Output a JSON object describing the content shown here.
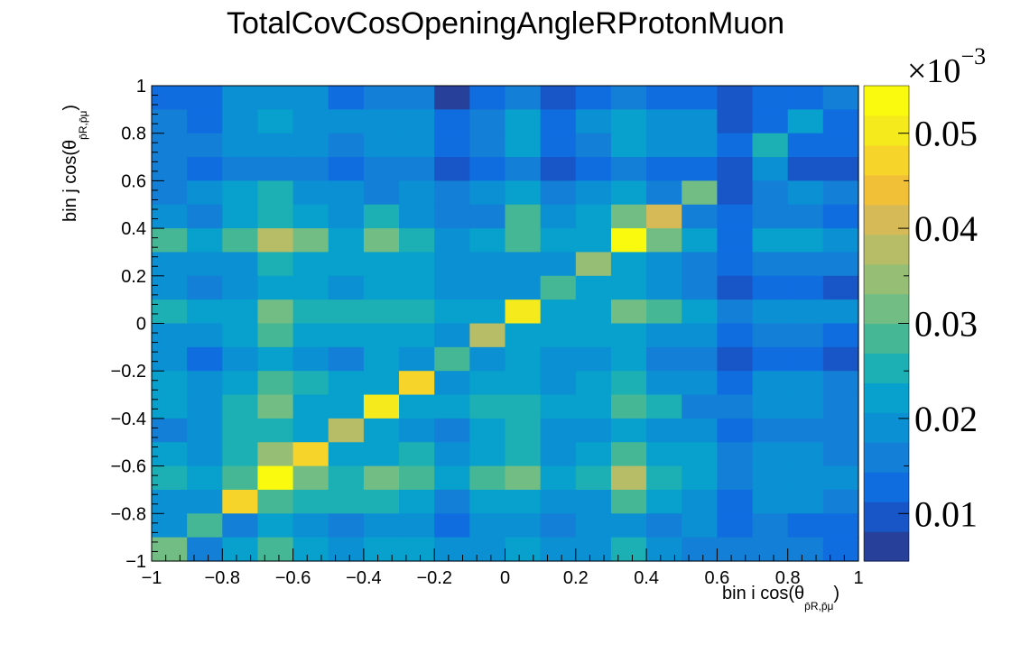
{
  "chart_data": {
    "type": "heatmap",
    "title": "TotalCovCosOpeningAngleRProtonMuon",
    "xlabel": "bin i cos(θ",
    "xlabel_sub": "p̄R,p̄μ",
    "ylabel": "bin j cos(θ",
    "ylabel_sub": "p̄R,p̄μ",
    "xlim": [
      -1,
      1
    ],
    "ylim": [
      -1,
      1
    ],
    "x_ticks": [
      "−1",
      "−0.8",
      "−0.6",
      "−0.4",
      "−0.2",
      "0",
      "0.2",
      "0.4",
      "0.6",
      "0.8",
      "1"
    ],
    "y_ticks": [
      "−1",
      "−0.8",
      "−0.6",
      "−0.4",
      "−0.2",
      "0",
      "0.2",
      "0.4",
      "0.6",
      "0.8",
      "1"
    ],
    "colorbar": {
      "range": [
        0.005,
        0.055
      ],
      "exponent_base": "×10",
      "exponent_power": "−3",
      "tick_values": [
        0.01,
        0.02,
        0.03,
        0.04,
        0.05
      ],
      "tick_labels": [
        "0.01",
        "0.02",
        "0.03",
        "0.04",
        "0.05"
      ],
      "colors": [
        "#27409a",
        "#1856c8",
        "#0f6de0",
        "#137fd6",
        "#0b90d4",
        "#08a0cc",
        "#1cb0b4",
        "#46b794",
        "#72bd84",
        "#96be74",
        "#b7bc67",
        "#d7ba58",
        "#f2c036",
        "#f6d42a",
        "#f5ea1c",
        "#fafa0e"
      ]
    },
    "grid": false,
    "nbins": 20,
    "z_rows_from_top": [
      [
        0.014,
        0.014,
        0.0175,
        0.0175,
        0.0175,
        0.013,
        0.0165,
        0.0165,
        0.008,
        0.013,
        0.0155,
        0.0085,
        0.013,
        0.0165,
        0.014,
        0.014,
        0.009,
        0.014,
        0.014,
        0.0165
      ],
      [
        0.015,
        0.012,
        0.019,
        0.021,
        0.019,
        0.018,
        0.018,
        0.018,
        0.013,
        0.015,
        0.021,
        0.013,
        0.0175,
        0.021,
        0.018,
        0.0195,
        0.0085,
        0.014,
        0.023,
        0.014
      ],
      [
        0.015,
        0.017,
        0.02,
        0.02,
        0.02,
        0.017,
        0.019,
        0.019,
        0.012,
        0.016,
        0.021,
        0.012,
        0.017,
        0.021,
        0.0175,
        0.0175,
        0.013,
        0.024,
        0.014,
        0.014
      ],
      [
        0.015,
        0.0125,
        0.015,
        0.016,
        0.015,
        0.0135,
        0.0165,
        0.015,
        0.009,
        0.0125,
        0.0155,
        0.0085,
        0.0125,
        0.016,
        0.013,
        0.014,
        0.0085,
        0.019,
        0.01,
        0.01
      ],
      [
        0.016,
        0.018,
        0.022,
        0.024,
        0.02,
        0.02,
        0.0165,
        0.019,
        0.015,
        0.019,
        0.021,
        0.0165,
        0.0185,
        0.022,
        0.0165,
        0.032,
        0.009,
        0.017,
        0.019,
        0.0145
      ],
      [
        0.019,
        0.016,
        0.022,
        0.026,
        0.022,
        0.02,
        0.026,
        0.019,
        0.016,
        0.016,
        0.028,
        0.02,
        0.022,
        0.032,
        0.04,
        0.016,
        0.012,
        0.0165,
        0.0165,
        0.013
      ],
      [
        0.027,
        0.021,
        0.029,
        0.039,
        0.032,
        0.023,
        0.032,
        0.025,
        0.02,
        0.023,
        0.03,
        0.023,
        0.023,
        0.054,
        0.031,
        0.021,
        0.014,
        0.021,
        0.021,
        0.019
      ],
      [
        0.018,
        0.019,
        0.02,
        0.024,
        0.023,
        0.021,
        0.023,
        0.022,
        0.019,
        0.02,
        0.02,
        0.02,
        0.034,
        0.023,
        0.02,
        0.017,
        0.013,
        0.016,
        0.017,
        0.015
      ],
      [
        0.019,
        0.015,
        0.02,
        0.023,
        0.021,
        0.02,
        0.023,
        0.022,
        0.02,
        0.02,
        0.02,
        0.027,
        0.021,
        0.023,
        0.02,
        0.016,
        0.009,
        0.014,
        0.014,
        0.011
      ],
      [
        0.024,
        0.021,
        0.023,
        0.033,
        0.026,
        0.026,
        0.026,
        0.024,
        0.023,
        0.023,
        0.05,
        0.023,
        0.023,
        0.031,
        0.028,
        0.022,
        0.017,
        0.02,
        0.02,
        0.018
      ],
      [
        0.019,
        0.018,
        0.022,
        0.029,
        0.022,
        0.021,
        0.021,
        0.021,
        0.02,
        0.037,
        0.022,
        0.021,
        0.021,
        0.022,
        0.018,
        0.018,
        0.012,
        0.016,
        0.015,
        0.013
      ],
      [
        0.019,
        0.013,
        0.018,
        0.023,
        0.02,
        0.017,
        0.022,
        0.02,
        0.028,
        0.019,
        0.022,
        0.018,
        0.018,
        0.021,
        0.017,
        0.015,
        0.009,
        0.014,
        0.014,
        0.01
      ],
      [
        0.021,
        0.018,
        0.023,
        0.029,
        0.024,
        0.022,
        0.023,
        0.048,
        0.019,
        0.022,
        0.023,
        0.02,
        0.022,
        0.026,
        0.019,
        0.018,
        0.014,
        0.019,
        0.018,
        0.016
      ],
      [
        0.022,
        0.02,
        0.025,
        0.033,
        0.023,
        0.022,
        0.05,
        0.023,
        0.023,
        0.024,
        0.026,
        0.023,
        0.023,
        0.03,
        0.025,
        0.017,
        0.016,
        0.019,
        0.019,
        0.017
      ],
      [
        0.017,
        0.018,
        0.025,
        0.025,
        0.021,
        0.038,
        0.022,
        0.02,
        0.016,
        0.021,
        0.024,
        0.018,
        0.02,
        0.023,
        0.02,
        0.019,
        0.013,
        0.016,
        0.016,
        0.015
      ],
      [
        0.022,
        0.019,
        0.025,
        0.034,
        0.046,
        0.022,
        0.022,
        0.025,
        0.02,
        0.022,
        0.026,
        0.02,
        0.023,
        0.03,
        0.021,
        0.021,
        0.015,
        0.019,
        0.019,
        0.017
      ],
      [
        0.026,
        0.022,
        0.03,
        0.054,
        0.032,
        0.025,
        0.032,
        0.027,
        0.022,
        0.027,
        0.032,
        0.023,
        0.024,
        0.037,
        0.025,
        0.022,
        0.017,
        0.02,
        0.02,
        0.018
      ],
      [
        0.02,
        0.018,
        0.047,
        0.03,
        0.026,
        0.026,
        0.026,
        0.023,
        0.016,
        0.021,
        0.023,
        0.018,
        0.02,
        0.027,
        0.021,
        0.02,
        0.014,
        0.018,
        0.018,
        0.016
      ],
      [
        0.018,
        0.027,
        0.017,
        0.021,
        0.019,
        0.017,
        0.019,
        0.018,
        0.014,
        0.018,
        0.019,
        0.016,
        0.018,
        0.019,
        0.017,
        0.018,
        0.012,
        0.015,
        0.014,
        0.013
      ],
      [
        0.033,
        0.017,
        0.021,
        0.027,
        0.023,
        0.019,
        0.021,
        0.021,
        0.019,
        0.019,
        0.022,
        0.018,
        0.02,
        0.025,
        0.02,
        0.017,
        0.015,
        0.015,
        0.015,
        0.014
      ]
    ]
  }
}
